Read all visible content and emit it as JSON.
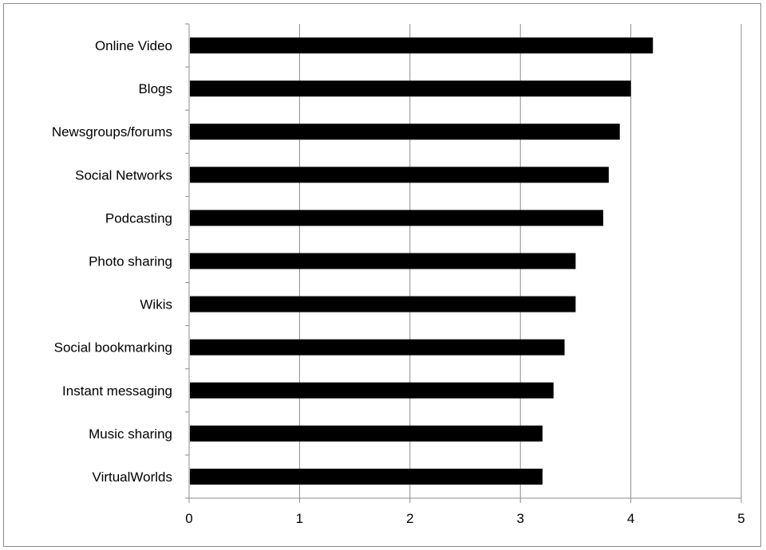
{
  "chart_data": {
    "type": "bar",
    "orientation": "horizontal",
    "title": "",
    "xlabel": "",
    "ylabel": "",
    "categories": [
      "Online Video",
      "Blogs",
      "Newsgroups/forums",
      "Social Networks",
      "Podcasting",
      "Photo sharing",
      "Wikis",
      "Social bookmarking",
      "Instant messaging",
      "Music sharing",
      "VirtualWorlds"
    ],
    "values": [
      4.2,
      4.0,
      3.9,
      3.8,
      3.75,
      3.5,
      3.5,
      3.4,
      3.3,
      3.2,
      3.2
    ],
    "xlim": [
      0,
      5
    ],
    "xticks": [
      "0",
      "1",
      "2",
      "3",
      "4",
      "5"
    ],
    "grid": "vertical",
    "legend": "none",
    "colors": {
      "bar": "#000000",
      "grid": "#8c8c8c",
      "axis": "#8c8c8c"
    }
  }
}
